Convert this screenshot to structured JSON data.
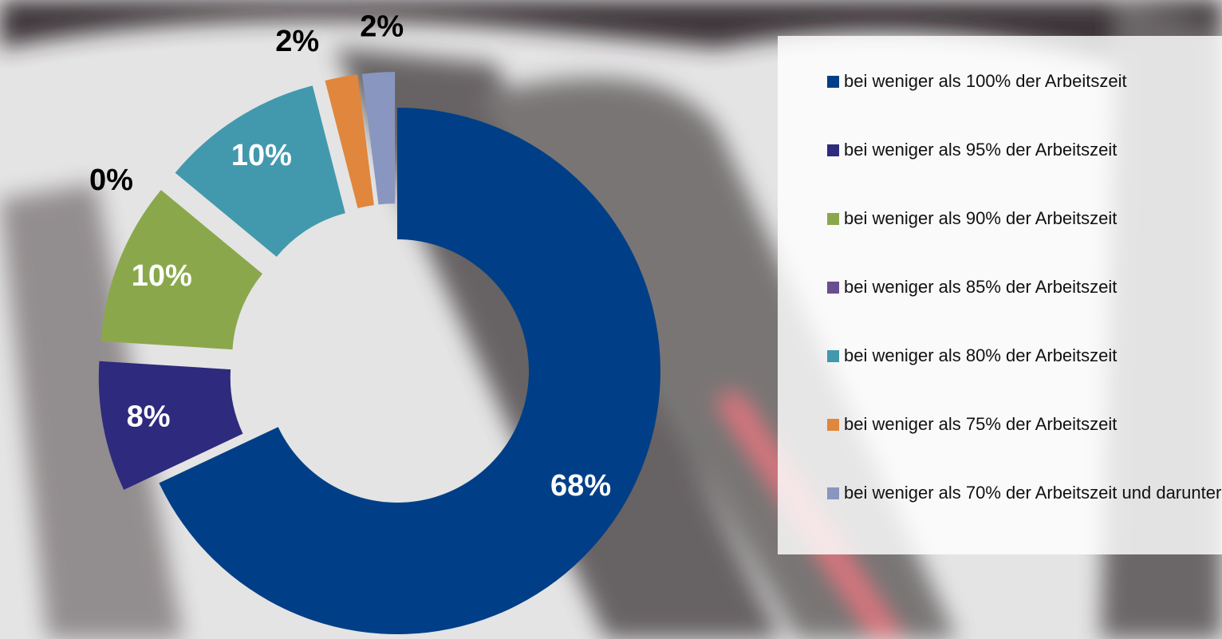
{
  "chart_data": {
    "type": "donut",
    "categories": [
      "bei weniger als 100% der Arbeitszeit",
      "bei weniger als 95% der Arbeitszeit",
      "bei weniger als 90% der Arbeitszeit",
      "bei weniger als 85% der Arbeitszeit",
      "bei weniger als 80% der Arbeitszeit",
      "bei weniger als 75% der Arbeitszeit",
      "bei weniger als 70% der Arbeitszeit und darunter"
    ],
    "values": [
      68,
      8,
      10,
      0,
      10,
      2,
      2
    ],
    "value_labels": [
      "68%",
      "8%",
      "10%",
      "0%",
      "10%",
      "2%",
      "2%"
    ],
    "colors": [
      "#003f87",
      "#2e2a7e",
      "#8aa84b",
      "#6a4f8f",
      "#4299ad",
      "#e0863d",
      "#8896c0"
    ],
    "legend": "right"
  }
}
